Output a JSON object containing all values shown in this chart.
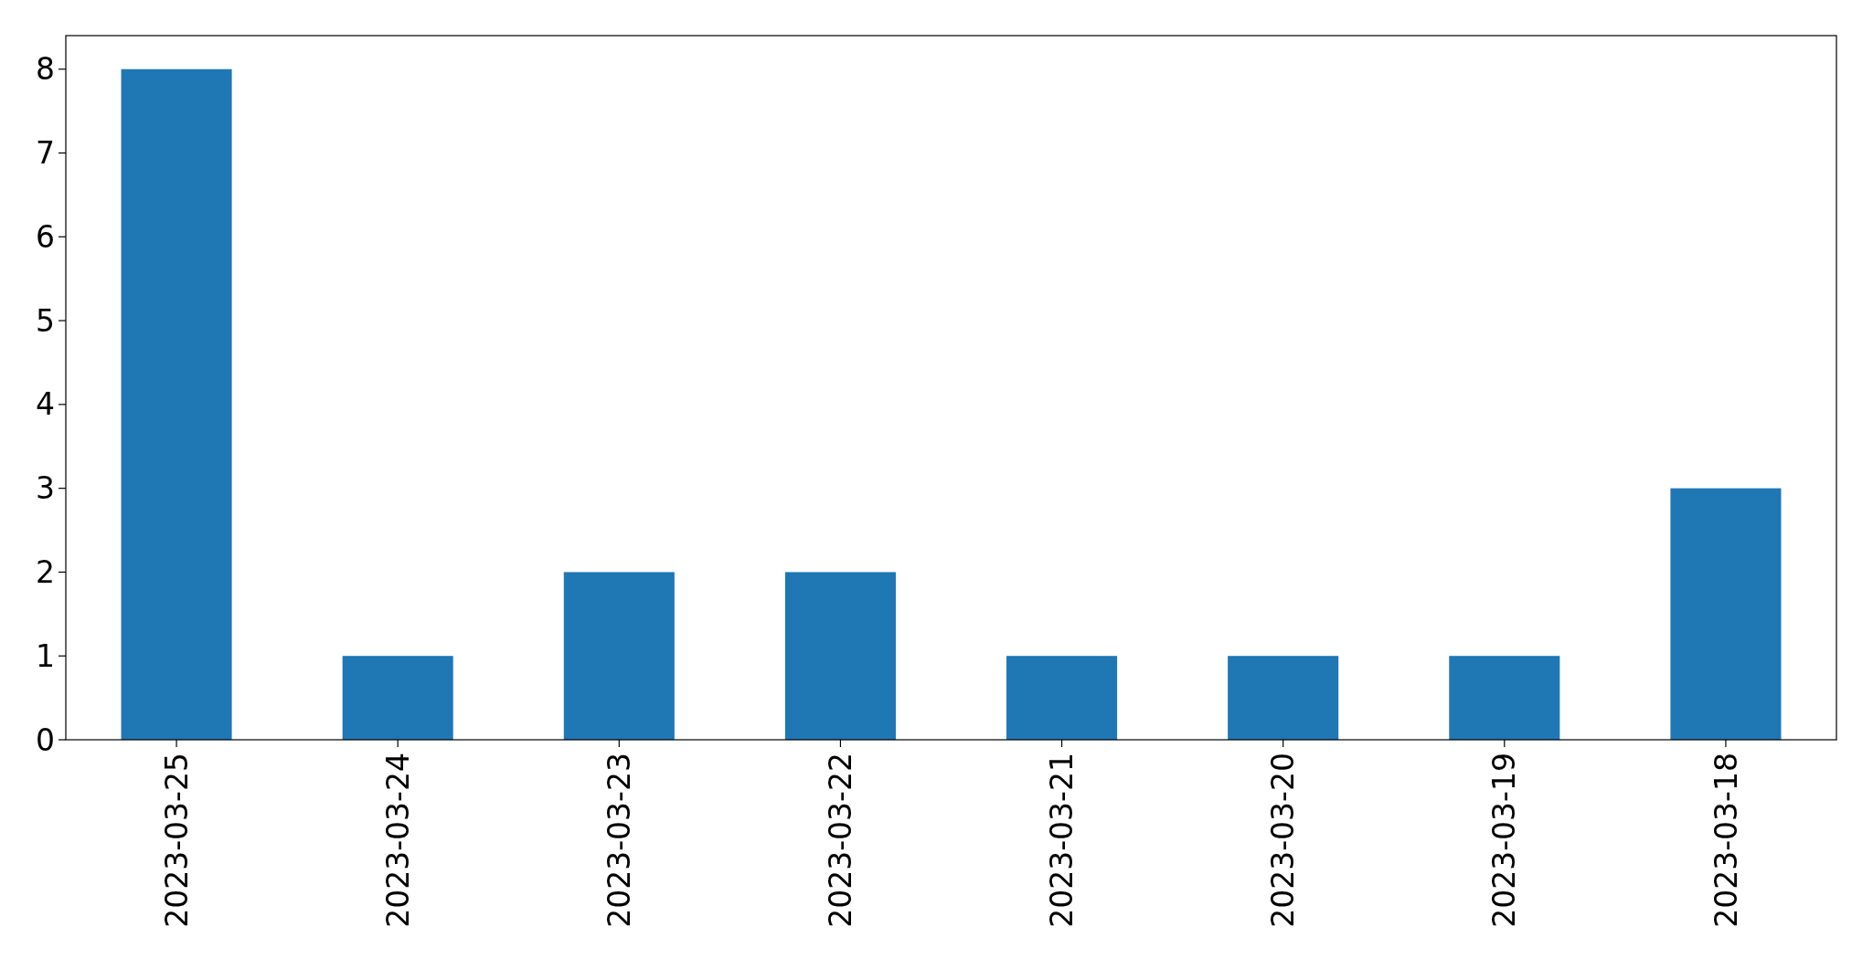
{
  "chart_data": {
    "type": "bar",
    "categories": [
      "2023-03-25",
      "2023-03-24",
      "2023-03-23",
      "2023-03-22",
      "2023-03-21",
      "2023-03-20",
      "2023-03-19",
      "2023-03-18"
    ],
    "values": [
      8,
      1,
      2,
      2,
      1,
      1,
      1,
      3
    ],
    "color": "#1f77b4",
    "ylim": [
      0,
      8.4
    ],
    "yticks": [
      0,
      1,
      2,
      3,
      4,
      5,
      6,
      7,
      8
    ],
    "grid": false
  }
}
